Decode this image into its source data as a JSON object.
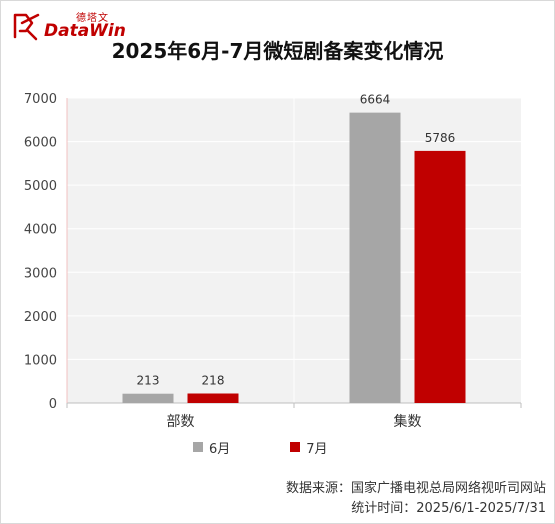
{
  "brand": {
    "name_cn": "德塔文",
    "name_en": "DataWin",
    "color": "#c00000"
  },
  "title": "2025年6月-7月微短剧备案变化情况",
  "chart_data": {
    "type": "bar",
    "categories": [
      "部数",
      "集数"
    ],
    "series": [
      {
        "name": "6月",
        "color": "#a6a6a6",
        "values": [
          213,
          6664
        ]
      },
      {
        "name": "7月",
        "color": "#c00000",
        "values": [
          218,
          5786
        ]
      }
    ],
    "yticks": [
      0,
      1000,
      2000,
      3000,
      4000,
      5000,
      6000,
      7000
    ],
    "ylim": [
      0,
      7000
    ],
    "grid": true,
    "legend_position": "bottom"
  },
  "source": {
    "line1": "数据来源：国家广播电视总局网络视听司网站",
    "line2": "统计时间：2025/6/1-2025/7/31"
  }
}
